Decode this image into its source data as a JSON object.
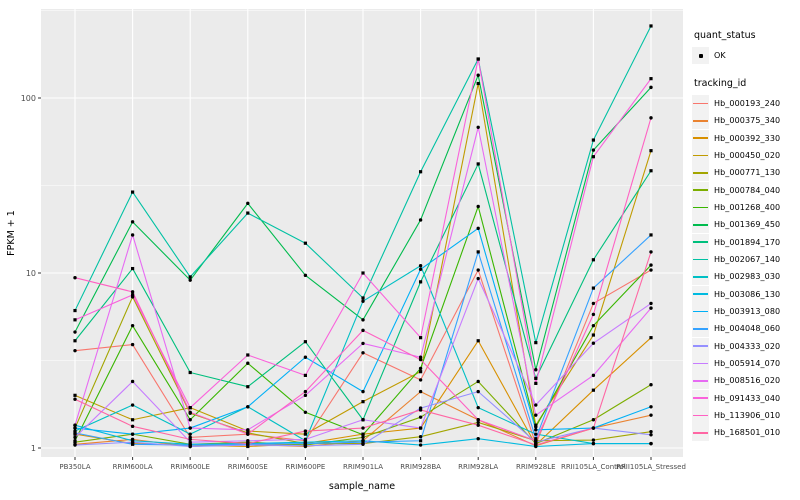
{
  "figure": {
    "y_axis_title": "FPKM + 1",
    "x_axis_title": "sample_name"
  },
  "legend": {
    "quant_status_title": "quant_status",
    "quant_status_items": [
      {
        "label": "OK"
      }
    ],
    "tracking_id_title": "tracking_id"
  },
  "colors": {
    "panel_bg": "#EBEBEB",
    "grid": "#FFFFFF",
    "tick_mark": "#333333",
    "tick_text": "#4D4D4D",
    "axis_title_text": "#000000",
    "legend_key_bg": "#F2F2F2",
    "point": "#000000"
  },
  "chart_data": {
    "type": "line",
    "title": "",
    "xlabel": "sample_name",
    "ylabel": "FPKM + 1",
    "legend_position": "right",
    "grid": true,
    "quant_status": "OK",
    "x_axis": {
      "categories": [
        "PB350LA",
        "RRIM600LA",
        "RRIM600LE",
        "RRIM600SE",
        "RRIM600PE",
        "RRIM901LA",
        "RRIM928BA",
        "RRIM928LA",
        "RRIM928LE",
        "RRII105LA_Control",
        "RRII105LA_Stressed"
      ]
    },
    "y_axis": {
      "scale": "log10",
      "ticks": [
        1,
        10,
        100
      ],
      "tick_labels": [
        "1",
        "10",
        "100"
      ],
      "minor_gridlines": [
        3.162,
        31.62,
        316.2
      ],
      "range": [
        0.95,
        330
      ]
    },
    "series": [
      {
        "name": "Hb_000193_240",
        "color": "#F8766D",
        "marker": "circle",
        "values": [
          3.6,
          3.9,
          1.15,
          1.2,
          1.1,
          3.5,
          2.45,
          10.4,
          1.05,
          6.7,
          10.4
        ]
      },
      {
        "name": "Hb_000375_340",
        "color": "#EA8331",
        "marker": "circle",
        "values": [
          1.05,
          1.12,
          1.02,
          1.05,
          1.02,
          1.1,
          2.1,
          1.45,
          1.03,
          1.3,
          1.54
        ]
      },
      {
        "name": "Hb_000392_330",
        "color": "#D89000",
        "marker": "square",
        "values": [
          1.2,
          1.06,
          1.04,
          1.02,
          1.06,
          1.2,
          1.3,
          4.1,
          1.04,
          2.14,
          4.27
        ]
      },
      {
        "name": "Hb_000450_020",
        "color": "#C09B00",
        "marker": "square",
        "values": [
          2.0,
          1.45,
          1.7,
          1.25,
          1.2,
          1.84,
          2.73,
          121,
          1.35,
          4.42,
          50
        ]
      },
      {
        "name": "Hb_000771_130",
        "color": "#A3A500",
        "marker": "circle",
        "values": [
          1.3,
          7.3,
          1.58,
          1.22,
          1.06,
          1.06,
          1.16,
          1.4,
          1.1,
          1.11,
          1.24
        ]
      },
      {
        "name": "Hb_000784_040",
        "color": "#7CAE00",
        "marker": "circle",
        "values": [
          1.08,
          1.2,
          1.05,
          1.08,
          1.04,
          1.15,
          1.5,
          2.4,
          1.06,
          1.45,
          2.3
        ]
      },
      {
        "name": "Hb_001268_400",
        "color": "#39B600",
        "marker": "circle",
        "values": [
          1.1,
          5.0,
          1.45,
          3.05,
          1.6,
          1.19,
          2.85,
          24,
          1.32,
          5.0,
          11.1
        ]
      },
      {
        "name": "Hb_001369_450",
        "color": "#00BB4E",
        "marker": "circle",
        "values": [
          4.6,
          19.6,
          9.1,
          25,
          9.7,
          5.4,
          20.1,
          135,
          2.8,
          50.4,
          115
        ]
      },
      {
        "name": "Hb_001894_170",
        "color": "#00BF7D",
        "marker": "square",
        "values": [
          4.1,
          10.6,
          2.7,
          2.24,
          4.05,
          1.45,
          8.9,
          42,
          2.5,
          11.9,
          38.4
        ]
      },
      {
        "name": "Hb_002067_140",
        "color": "#00C1A3",
        "marker": "square",
        "values": [
          6.1,
          29,
          9.5,
          22,
          14.8,
          7.2,
          37.9,
          167,
          4.0,
          57.5,
          258
        ]
      },
      {
        "name": "Hb_002983_030",
        "color": "#00BFC4",
        "marker": "circle",
        "values": [
          1.25,
          1.76,
          1.2,
          1.72,
          1.1,
          6.9,
          11.0,
          1.7,
          1.2,
          1.06,
          1.06
        ]
      },
      {
        "name": "Hb_003086_130",
        "color": "#00BAE0",
        "marker": "circle",
        "values": [
          1.35,
          1.1,
          1.05,
          1.06,
          1.08,
          1.1,
          1.04,
          1.13,
          1.02,
          1.06,
          1.06
        ]
      },
      {
        "name": "Hb_003913_080",
        "color": "#00B0F6",
        "marker": "circle",
        "values": [
          1.3,
          1.2,
          1.3,
          1.72,
          3.3,
          2.1,
          10.5,
          18,
          1.27,
          1.3,
          1.72
        ]
      },
      {
        "name": "Hb_004048_060",
        "color": "#35A2FF",
        "marker": "square",
        "values": [
          1.22,
          1.05,
          1.04,
          1.05,
          1.06,
          1.08,
          1.1,
          13.2,
          1.13,
          8.2,
          16.5
        ]
      },
      {
        "name": "Hb_004333_020",
        "color": "#9590FF",
        "marker": "circle",
        "values": [
          1.04,
          1.08,
          1.02,
          1.04,
          1.03,
          1.05,
          1.69,
          2.1,
          1.08,
          1.3,
          1.19
        ]
      },
      {
        "name": "Hb_005914_070",
        "color": "#C77CFF",
        "marker": "circle",
        "values": [
          1.15,
          2.4,
          1.08,
          1.1,
          1.12,
          1.45,
          1.3,
          9.3,
          1.76,
          3.97,
          6.7
        ]
      },
      {
        "name": "Hb_008516_020",
        "color": "#E76BF3",
        "marker": "circle",
        "values": [
          1.35,
          16.5,
          1.3,
          1.27,
          2.0,
          3.96,
          3.3,
          68,
          1.54,
          2.6,
          6.3
        ]
      },
      {
        "name": "Hb_091433_040",
        "color": "#FA62DB",
        "marker": "square",
        "values": [
          5.4,
          7.5,
          1.7,
          3.4,
          2.6,
          10.0,
          4.27,
          167,
          2.34,
          46.2,
          129
        ]
      },
      {
        "name": "Hb_113906_010",
        "color": "#FF61C3",
        "marker": "circle",
        "values": [
          9.4,
          7.8,
          1.6,
          1.2,
          2.1,
          4.7,
          3.2,
          1.45,
          1.1,
          5.8,
          77
        ]
      },
      {
        "name": "Hb_168501_010",
        "color": "#FF67A4",
        "marker": "circle",
        "values": [
          1.9,
          1.33,
          1.12,
          1.06,
          1.25,
          1.3,
          1.65,
          1.35,
          1.04,
          1.3,
          13.2
        ]
      }
    ]
  }
}
